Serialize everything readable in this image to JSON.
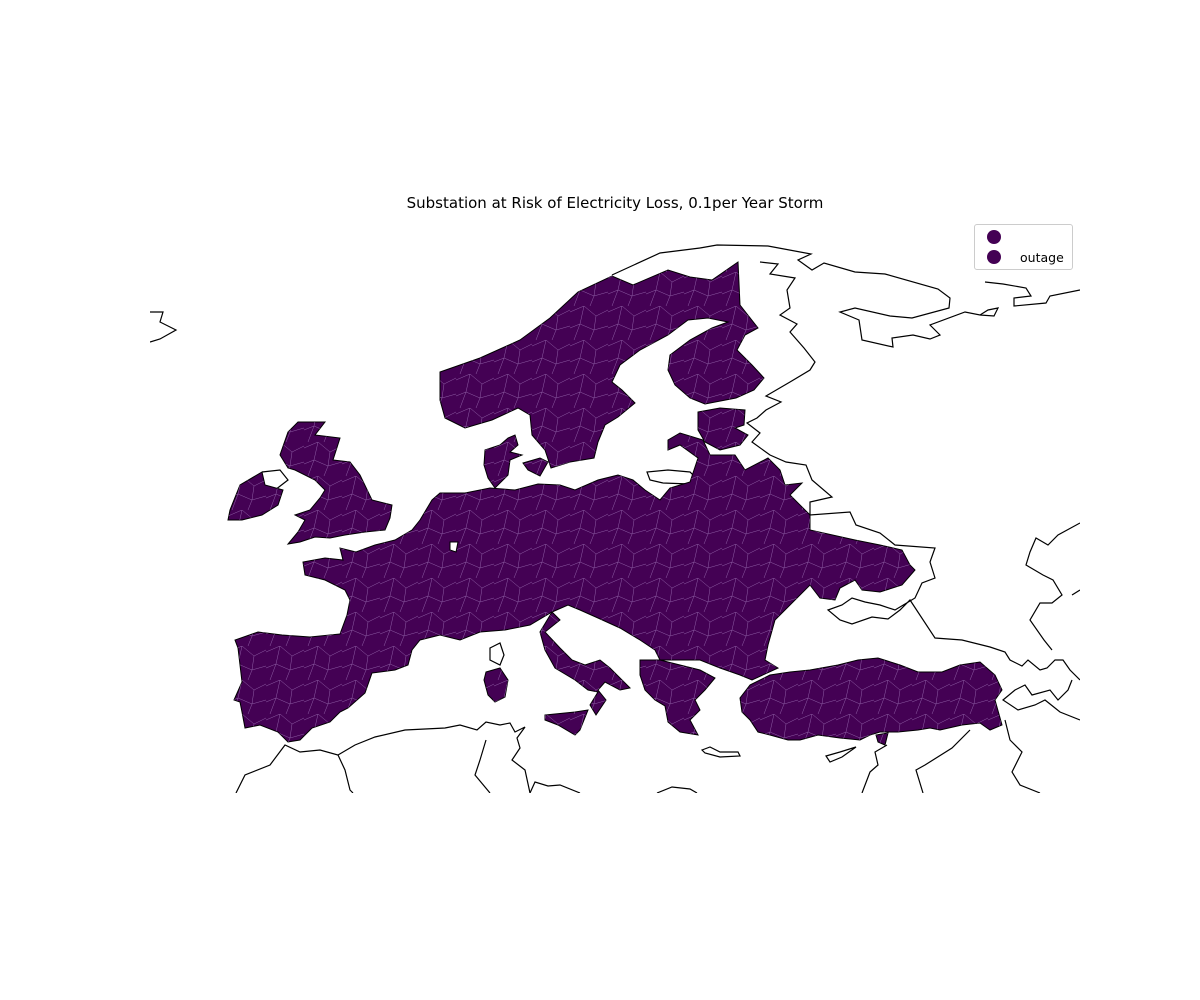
{
  "title": "Substation at Risk of Electricity Loss, 0.1per Year Storm",
  "legend": {
    "entries": [
      {
        "label": "",
        "color": "#440154"
      },
      {
        "label": "outage",
        "color": "#440154"
      }
    ]
  },
  "colors": {
    "region_fill": "#440154",
    "cell_border": "#8f5fa6",
    "coastline": "#000000",
    "background": "#ffffff"
  }
}
